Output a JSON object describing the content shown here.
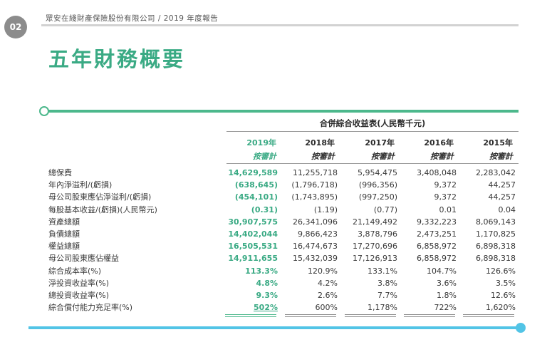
{
  "page": {
    "number": "02",
    "header": "眾安在綫財產保險股份有限公司 / 2019 年度報告",
    "title": "五年財務概要"
  },
  "table": {
    "caption": "合併綜合收益表(人民幣千元)",
    "columns": [
      {
        "year": "2019年",
        "basis": "按審計"
      },
      {
        "year": "2018年",
        "basis": "按審計"
      },
      {
        "year": "2017年",
        "basis": "按審計"
      },
      {
        "year": "2016年",
        "basis": "按審計"
      },
      {
        "year": "2015年",
        "basis": "按審計"
      }
    ],
    "rows": [
      {
        "label": "總保費",
        "values": [
          "14,629,589",
          "11,255,718",
          "5,954,475",
          "3,408,048",
          "2,283,042"
        ]
      },
      {
        "label": "年內淨溢利/(虧損)",
        "values": [
          "(638,645)",
          "(1,796,718)",
          "(996,356)",
          "9,372",
          "44,257"
        ]
      },
      {
        "label": "母公司股東應佔淨溢利/(虧損)",
        "values": [
          "(454,101)",
          "(1,743,895)",
          "(997,250)",
          "9,372",
          "44,257"
        ]
      },
      {
        "label": "每股基本收益/(虧損)(人民幣元)",
        "values": [
          "(0.31)",
          "(1.19)",
          "(0.77)",
          "0.01",
          "0.04"
        ]
      },
      {
        "label": "資產總額",
        "values": [
          "30,907,575",
          "26,341,096",
          "21,149,492",
          "9,332,223",
          "8,069,143"
        ]
      },
      {
        "label": "負債總額",
        "values": [
          "14,402,044",
          "9,866,423",
          "3,878,796",
          "2,473,251",
          "1,170,825"
        ]
      },
      {
        "label": "權益總額",
        "values": [
          "16,505,531",
          "16,474,673",
          "17,270,696",
          "6,858,972",
          "6,898,318"
        ]
      },
      {
        "label": "母公司股東應佔權益",
        "values": [
          "14,911,655",
          "15,432,039",
          "17,126,913",
          "6,858,972",
          "6,898,318"
        ]
      },
      {
        "label": "綜合成本率(%)",
        "values": [
          "113.3%",
          "120.9%",
          "133.1%",
          "104.7%",
          "126.6%"
        ]
      },
      {
        "label": "淨投資收益率(%)",
        "values": [
          "4.8%",
          "4.2%",
          "3.8%",
          "3.6%",
          "3.5%"
        ]
      },
      {
        "label": "總投資收益率(%)",
        "values": [
          "9.3%",
          "2.6%",
          "7.7%",
          "1.8%",
          "12.6%"
        ]
      },
      {
        "label": "綜合償付能力充足率(%)",
        "values": [
          "502%",
          "600%",
          "1,178%",
          "722%",
          "1,620%"
        ]
      }
    ]
  },
  "colors": {
    "accent_green": "#3aaa84",
    "accent_blue": "#52c4e6",
    "badge_gray": "#8c8c8c"
  }
}
